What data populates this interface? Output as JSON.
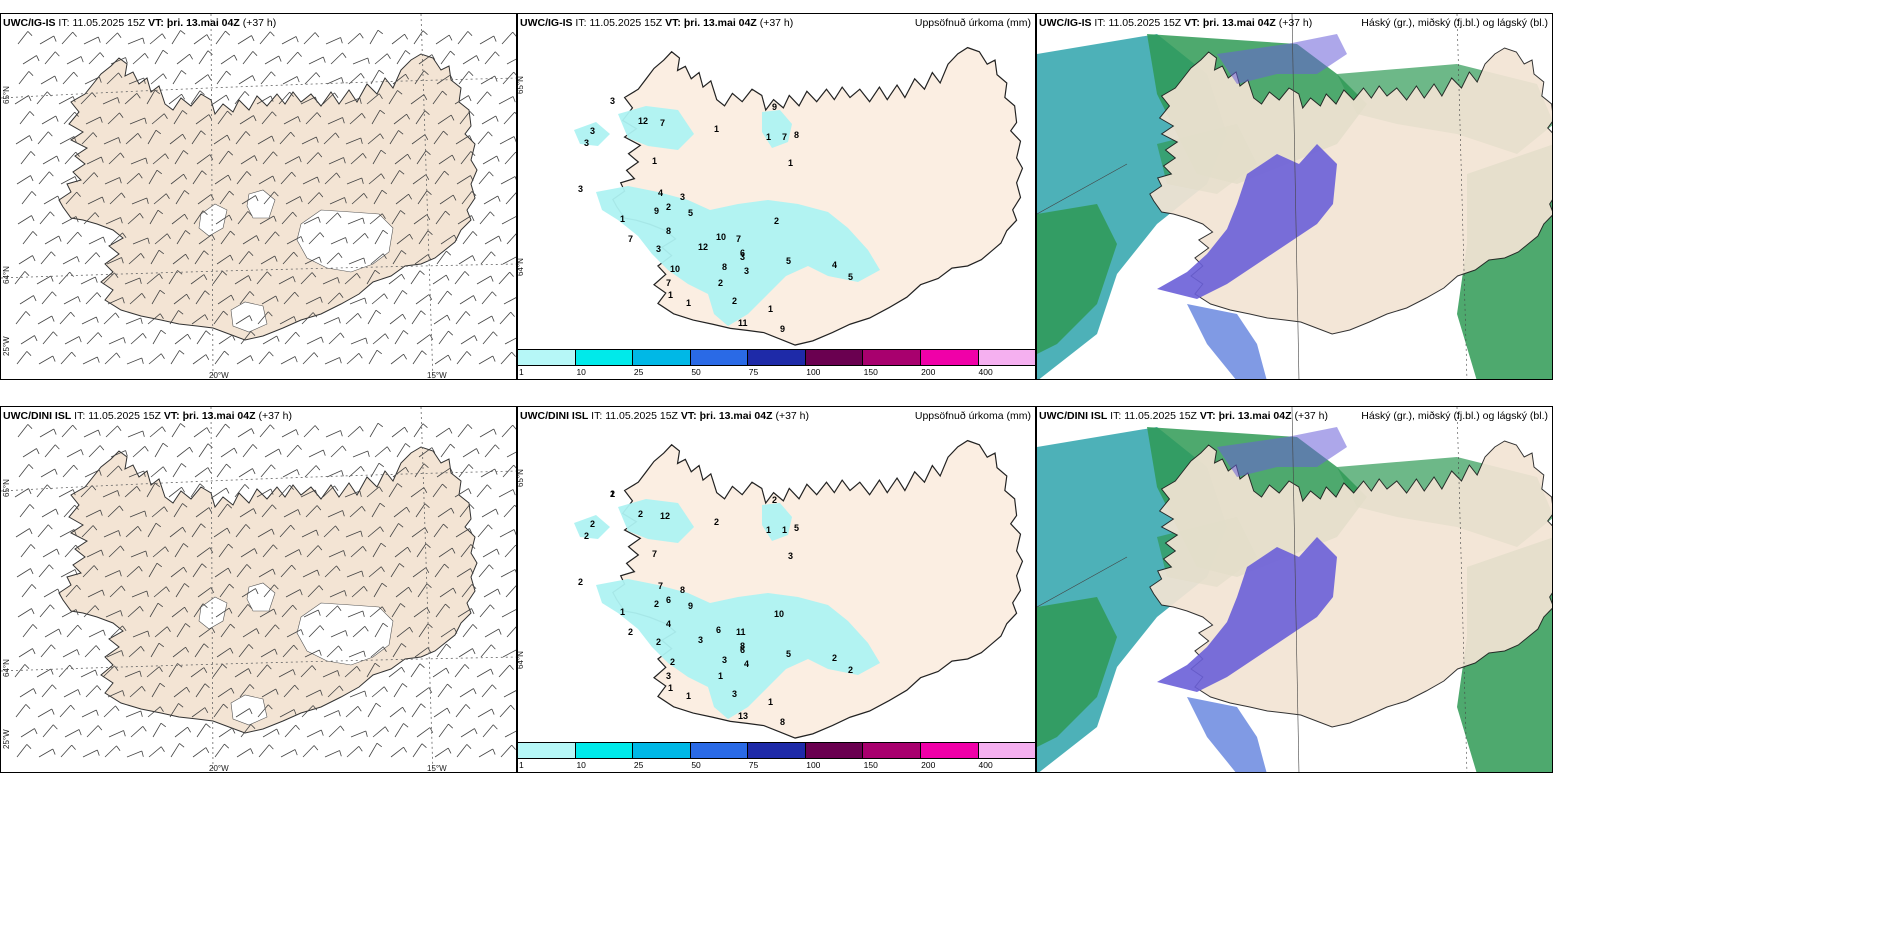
{
  "rows": [
    {
      "model": "UWC/IG-IS",
      "it_label": "IT:",
      "it_value": "11.05.2025 15Z",
      "vt_label": "VT:",
      "vt_value": "þri. 13.mai 04Z",
      "lead": "(+37 h)",
      "axis": {
        "lat_top": "65°N",
        "lat_bot": "64°N",
        "lon_left": "20°W",
        "lon_right": "15°W",
        "lon_far": "25°W"
      },
      "precip_numbers": [
        "3",
        "12",
        "7",
        "3",
        "3",
        "3",
        "1",
        "1",
        "9",
        "1",
        "7",
        "8",
        "1",
        "4",
        "2",
        "3",
        "5",
        "1",
        "9",
        "8",
        "7",
        "3",
        "10",
        "7",
        "6",
        "2",
        "3",
        "8",
        "12",
        "10",
        "7",
        "2",
        "3",
        "5",
        "4",
        "5",
        "1",
        "1",
        "1",
        "9",
        "2",
        "11"
      ]
    },
    {
      "model": "UWC/DINI ISL",
      "it_label": "IT:",
      "it_value": "11.05.2025 15Z",
      "vt_label": "VT:",
      "vt_value": "þri. 13.mai 04Z",
      "lead": "(+37 h)",
      "axis": {
        "lat_top": "65°N",
        "lat_bot": "64°N",
        "lon_left": "20°W",
        "lon_right": "15°W",
        "lon_far": "25°W"
      },
      "precip_numbers": [
        "2",
        "2",
        "12",
        "2",
        "2",
        "2",
        "7",
        "2",
        "2",
        "1",
        "1",
        "5",
        "3",
        "7",
        "6",
        "8",
        "9",
        "1",
        "2",
        "4",
        "2",
        "2",
        "6",
        "11",
        "8",
        "10",
        "6",
        "3",
        "3",
        "2",
        "3",
        "1",
        "4",
        "5",
        "2",
        "2",
        "1",
        "1",
        "1",
        "8",
        "3",
        "13",
        "1"
      ]
    }
  ],
  "titles": {
    "precip": "Uppsöfnuð úrkoma (mm)",
    "cloud": "Háský (gr.), miðský (fj.bl.) og lágský (bl.)"
  },
  "colorbar": {
    "labels": [
      "1",
      "10",
      "25",
      "50",
      "75",
      "100",
      "150",
      "200",
      "400"
    ],
    "colors": [
      "#b6f7f7",
      "#00eaea",
      "#00b8e6",
      "#2a6ae6",
      "#1e2aa8",
      "#6a0050",
      "#a8006e",
      "#f000a8",
      "#f5b0f0"
    ]
  },
  "colors": {
    "land": "#f3e4d4",
    "land_precip": "#fbeee2",
    "precip_fill": "#aef2f2",
    "cloud_high": "#2f9a55",
    "cloud_mid": "#6a5fd8",
    "cloud_low": "#3aa8b0"
  }
}
